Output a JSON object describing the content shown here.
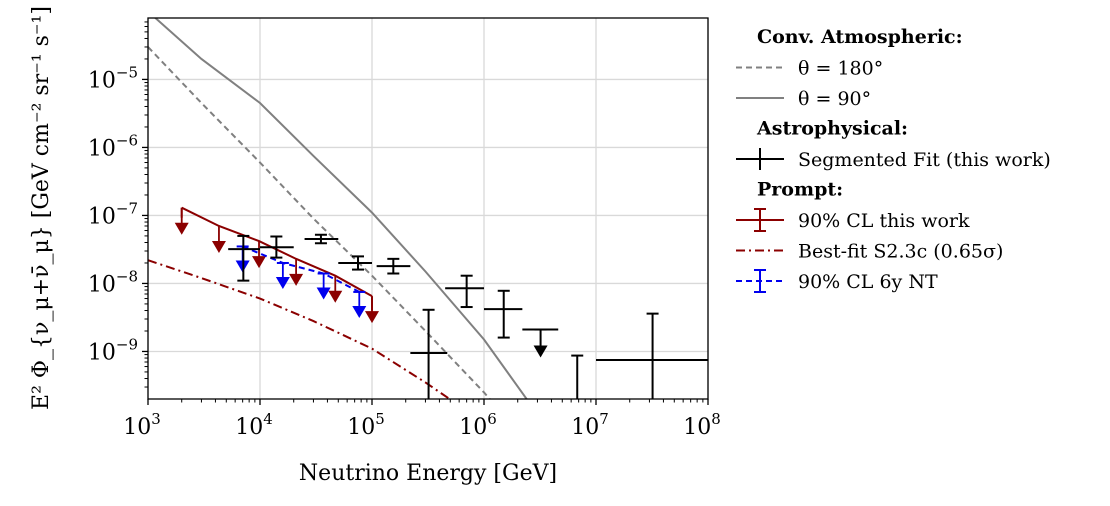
{
  "chart_data": {
    "type": "line",
    "xlabel": "Neutrino Energy [GeV]",
    "ylabel": "E² Φ_{ν_μ+ν̄_μ} [GeV cm⁻² sr⁻¹ s⁻¹]",
    "xscale": "log",
    "yscale": "log",
    "xlim": [
      1000,
      100000000
    ],
    "ylim": [
      2e-10,
      8e-05
    ],
    "grid": true,
    "legend_placement": "outside-right",
    "x_ticks": [
      {
        "value": 1000,
        "base": "10",
        "exp": "3"
      },
      {
        "value": 10000,
        "base": "10",
        "exp": "4"
      },
      {
        "value": 100000,
        "base": "10",
        "exp": "5"
      },
      {
        "value": 1000000,
        "base": "10",
        "exp": "6"
      },
      {
        "value": 10000000,
        "base": "10",
        "exp": "7"
      },
      {
        "value": 100000000,
        "base": "10",
        "exp": "8"
      }
    ],
    "y_ticks": [
      {
        "value": 1e-09,
        "base": "10",
        "exp": "−9"
      },
      {
        "value": 1e-08,
        "base": "10",
        "exp": "−8"
      },
      {
        "value": 1e-07,
        "base": "10",
        "exp": "−7"
      },
      {
        "value": 1e-06,
        "base": "10",
        "exp": "−6"
      },
      {
        "value": 1e-05,
        "base": "10",
        "exp": "−5"
      }
    ],
    "legend": [
      {
        "type": "header",
        "text": "Conv. Atmospheric:"
      },
      {
        "type": "dashed",
        "color": "#808080",
        "text": "θ = 180°"
      },
      {
        "type": "solid",
        "color": "#808080",
        "text": "θ = 90°"
      },
      {
        "type": "header",
        "text": "Astrophysical:"
      },
      {
        "type": "errorbar",
        "color": "#000000",
        "text": "Segmented Fit (this work)"
      },
      {
        "type": "header",
        "text": "Prompt:"
      },
      {
        "type": "capline",
        "color": "#8b0000",
        "text": "90% CL this work"
      },
      {
        "type": "dashdot",
        "color": "#8b0000",
        "text": "Best-fit S2.3c (0.65σ)"
      },
      {
        "type": "capdashed",
        "color": "#0000ee",
        "text": "90% CL 6y NT"
      }
    ],
    "series": [
      {
        "style": "dashed",
        "color": "#808080",
        "x": [
          1000,
          3000,
          10000,
          30000,
          100000,
          300000,
          1000000,
          3000000
        ],
        "y": [
          3e-05,
          4.5e-06,
          6e-07,
          9e-08,
          1.3e-08,
          2e-09,
          2.5e-10,
          3e-11
        ]
      },
      {
        "style": "solid",
        "color": "#808080",
        "x": [
          1000,
          3000,
          10000,
          30000,
          100000,
          300000,
          1000000,
          3000000
        ],
        "y": [
          0.0001,
          2e-05,
          4.5e-06,
          7.5e-07,
          1.1e-07,
          1.5e-08,
          1.5e-09,
          1.2e-10
        ]
      },
      {
        "style": "dashdot",
        "color": "#8b0000",
        "x": [
          1000,
          3000,
          10000,
          30000,
          100000,
          300000,
          1000000
        ],
        "y": [
          2.2e-08,
          1.2e-08,
          6e-09,
          2.8e-09,
          1.1e-09,
          3.5e-10,
          9e-11
        ]
      },
      {
        "style": "steps-upper-limit",
        "color": "#8b0000",
        "marker": "down-triangle",
        "edges": [
          2000,
          100000
        ],
        "x": [
          2000,
          4300,
          9800,
          21000,
          47000,
          100000
        ],
        "y": [
          1.3e-07,
          7e-08,
          4.2e-08,
          2.3e-08,
          1.3e-08,
          6.5e-09
        ]
      },
      {
        "style": "dashed-upper-limit",
        "color": "#0000ee",
        "marker": "down-triangle",
        "x": [
          7000,
          16000,
          37000,
          77000
        ],
        "y": [
          3.5e-08,
          2e-08,
          1.4e-08,
          7.5e-09
        ]
      }
    ],
    "segmented_fit": [
      {
        "x": 7100,
        "x_lo": 5200,
        "x_hi": 10000,
        "y": 3.2e-08,
        "y_lo": 1.1e-08,
        "y_hi": 5e-08,
        "upper_limit": false
      },
      {
        "x": 14000,
        "x_lo": 10000,
        "x_hi": 20000,
        "y": 3.4e-08,
        "y_lo": 2.4e-08,
        "y_hi": 4.9e-08,
        "upper_limit": false
      },
      {
        "x": 35000,
        "x_lo": 25000,
        "x_hi": 50000,
        "y": 4.5e-08,
        "y_lo": 3.9e-08,
        "y_hi": 5.2e-08,
        "upper_limit": false
      },
      {
        "x": 75000,
        "x_lo": 50000,
        "x_hi": 100000,
        "y": 2e-08,
        "y_lo": 1.6e-08,
        "y_hi": 2.5e-08,
        "upper_limit": false
      },
      {
        "x": 155000,
        "x_lo": 110000,
        "x_hi": 220000,
        "y": 1.8e-08,
        "y_lo": 1.4e-08,
        "y_hi": 2.3e-08,
        "upper_limit": false
      },
      {
        "x": 320000,
        "x_lo": 220000,
        "x_hi": 470000,
        "y": 9.5e-10,
        "y_lo": 1e-10,
        "y_hi": 4.1e-09,
        "upper_limit": false
      },
      {
        "x": 700000,
        "x_lo": 450000,
        "x_hi": 1000000,
        "y": 8.5e-09,
        "y_lo": 4.5e-09,
        "y_hi": 1.3e-08,
        "upper_limit": false
      },
      {
        "x": 1500000,
        "x_lo": 1000000,
        "x_hi": 2200000,
        "y": 4.2e-09,
        "y_lo": 1.6e-09,
        "y_hi": 7.8e-09,
        "upper_limit": false
      },
      {
        "x": 3200000,
        "x_lo": 2200000,
        "x_hi": 4600000,
        "y": 2.1e-09,
        "y_lo": 8e-10,
        "y_hi": 2.1e-09,
        "upper_limit": true
      },
      {
        "x": 6800000,
        "x_lo": 6800000,
        "x_hi": 6800000,
        "y": 1e-10,
        "y_lo": 1e-10,
        "y_hi": 8.7e-10,
        "upper_limit": false
      },
      {
        "x": 32000000,
        "x_lo": 10000000,
        "x_hi": 100000000,
        "y": 7.5e-10,
        "y_lo": 1e-10,
        "y_hi": 3.6e-09,
        "upper_limit": false
      }
    ]
  }
}
